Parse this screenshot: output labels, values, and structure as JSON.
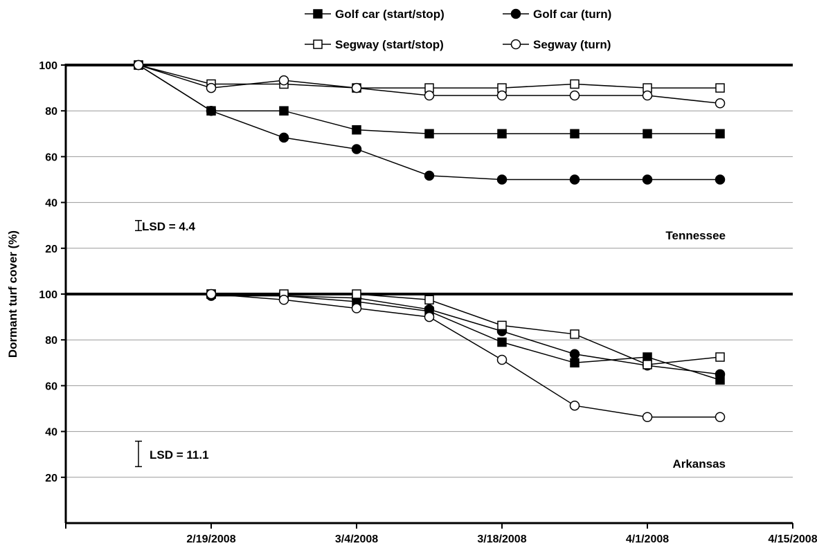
{
  "chart_data": {
    "type": "line",
    "ylabel": "Dormant turf cover (%)",
    "x_ticks": [
      "2/19/2008",
      "3/4/2008",
      "3/18/2008",
      "4/1/2008",
      "4/15/2008"
    ],
    "xlim": [
      "2/5/2008",
      "4/15/2008"
    ],
    "y_ticks": [
      20,
      40,
      60,
      80,
      100
    ],
    "ylim": [
      0,
      100
    ],
    "grid": true,
    "legend_position": "top",
    "legend": [
      "Golf car (start/stop)",
      "Golf car (turn)",
      "Segway (start/stop)",
      "Segway (turn)"
    ],
    "series_styles": [
      {
        "marker": "square",
        "fill": "#000000"
      },
      {
        "marker": "circle",
        "fill": "#000000"
      },
      {
        "marker": "square",
        "fill": "#ffffff"
      },
      {
        "marker": "circle",
        "fill": "#ffffff"
      }
    ],
    "panels": [
      {
        "label": "Tennessee",
        "lsd_label": "LSD = 4.4",
        "lsd": 4.4,
        "x": [
          "2/12/2008",
          "2/19/2008",
          "2/26/2008",
          "3/4/2008",
          "3/11/2008",
          "3/18/2008",
          "3/25/2008",
          "4/1/2008",
          "4/8/2008"
        ],
        "series": [
          {
            "values": [
              100,
              80,
              80,
              71.7,
              70,
              70,
              70,
              70,
              70
            ]
          },
          {
            "values": [
              100,
              80,
              68.3,
              63.3,
              51.7,
              50,
              50,
              50,
              50
            ]
          },
          {
            "values": [
              100,
              91.7,
              91.7,
              90,
              90,
              90,
              91.7,
              90,
              90
            ]
          },
          {
            "values": [
              100,
              90,
              93.3,
              90,
              86.7,
              86.7,
              86.7,
              86.7,
              83.3
            ]
          }
        ]
      },
      {
        "label": "Arkansas",
        "lsd_label": "LSD = 11.1",
        "lsd": 11.1,
        "x": [
          "2/19/2008",
          "2/26/2008",
          "3/4/2008",
          "3/11/2008",
          "3/18/2008",
          "3/25/2008",
          "4/1/2008",
          "4/8/2008"
        ],
        "series": [
          {
            "values": [
              100,
              99.2,
              96.7,
              92.5,
              79,
              70,
              72.5,
              62.5
            ]
          },
          {
            "values": [
              99.2,
              99.2,
              98.3,
              93.3,
              83.8,
              73.8,
              68.8,
              65
            ]
          },
          {
            "values": [
              100,
              100,
              100,
              97.5,
              86.3,
              82.5,
              69.2,
              72.5
            ]
          },
          {
            "values": [
              100,
              97.5,
              93.8,
              90,
              71.3,
              51.3,
              46.3,
              46.3
            ]
          }
        ]
      }
    ]
  }
}
